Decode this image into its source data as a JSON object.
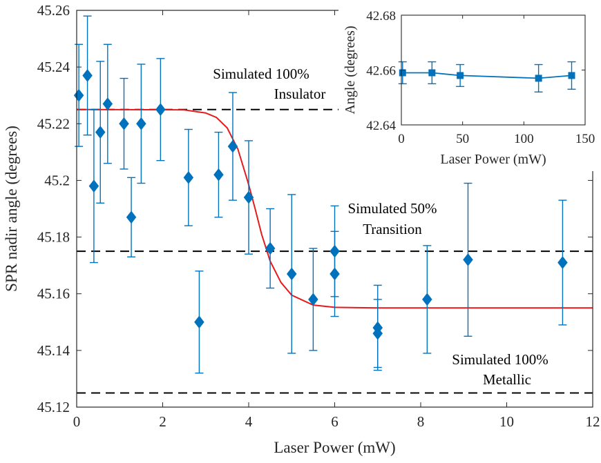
{
  "chart_data": [
    {
      "type": "scatter",
      "xlabel": "Laser Power (mW)",
      "ylabel": "SPR nadir angle (degrees)",
      "xlim": [
        0,
        12
      ],
      "ylim": [
        45.12,
        45.26
      ],
      "x_ticks": [
        0,
        2,
        4,
        6,
        8,
        10,
        12
      ],
      "y_ticks": [
        45.12,
        45.14,
        45.16,
        45.18,
        45.2,
        45.22,
        45.24,
        45.26
      ],
      "x_tick_labels": [
        "0",
        "2",
        "4",
        "6",
        "8",
        "10",
        "12"
      ],
      "y_tick_labels": [
        "45.12",
        "45.14",
        "45.16",
        "45.18",
        "45.2",
        "45.22",
        "45.24",
        "45.26"
      ],
      "grid": false,
      "colors": {
        "markers": "#0072BD",
        "fit": "#e41a1c",
        "reference_lines": "#000000"
      },
      "series": [
        {
          "style": "diamond markers with error bars",
          "points": [
            {
              "x": 0.05,
              "y": 45.23,
              "err": 0.018
            },
            {
              "x": 0.25,
              "y": 45.237,
              "err": 0.021
            },
            {
              "x": 0.4,
              "y": 45.198,
              "err": 0.027
            },
            {
              "x": 0.55,
              "y": 45.217,
              "err": 0.025
            },
            {
              "x": 0.72,
              "y": 45.227,
              "err": 0.021
            },
            {
              "x": 1.1,
              "y": 45.22,
              "err": 0.016
            },
            {
              "x": 1.27,
              "y": 45.187,
              "err": 0.014
            },
            {
              "x": 1.5,
              "y": 45.22,
              "err": 0.021
            },
            {
              "x": 1.95,
              "y": 45.225,
              "err": 0.018
            },
            {
              "x": 2.6,
              "y": 45.201,
              "err": 0.017
            },
            {
              "x": 2.85,
              "y": 45.15,
              "err": 0.018
            },
            {
              "x": 3.3,
              "y": 45.202,
              "err": 0.015
            },
            {
              "x": 3.63,
              "y": 45.212,
              "err": 0.019
            },
            {
              "x": 4.0,
              "y": 45.194,
              "err": 0.02
            },
            {
              "x": 4.5,
              "y": 45.176,
              "err": 0.014
            },
            {
              "x": 5.0,
              "y": 45.167,
              "err": 0.028
            },
            {
              "x": 5.5,
              "y": 45.158,
              "err": 0.018
            },
            {
              "x": 6.0,
              "y": 45.175,
              "err": 0.016
            },
            {
              "x": 6.0,
              "y": 45.167,
              "err": 0.015
            },
            {
              "x": 7.0,
              "y": 45.148,
              "err": 0.015
            },
            {
              "x": 7.0,
              "y": 45.146,
              "err": 0.012
            },
            {
              "x": 8.15,
              "y": 45.158,
              "err": 0.019
            },
            {
              "x": 9.1,
              "y": 45.172,
              "err": 0.027
            },
            {
              "x": 11.3,
              "y": 45.171,
              "err": 0.022
            }
          ]
        },
        {
          "style": "fitted sigmoid curve",
          "points": [
            {
              "x": 0,
              "y": 45.225
            },
            {
              "x": 2.5,
              "y": 45.2249
            },
            {
              "x": 3.0,
              "y": 45.2238
            },
            {
              "x": 3.25,
              "y": 45.2222
            },
            {
              "x": 3.5,
              "y": 45.2185
            },
            {
              "x": 3.75,
              "y": 45.211
            },
            {
              "x": 4.0,
              "y": 45.1985
            },
            {
              "x": 4.15,
              "y": 45.19
            },
            {
              "x": 4.3,
              "y": 45.181
            },
            {
              "x": 4.5,
              "y": 45.1715
            },
            {
              "x": 4.75,
              "y": 45.164
            },
            {
              "x": 5.0,
              "y": 45.1595
            },
            {
              "x": 5.5,
              "y": 45.156
            },
            {
              "x": 6.0,
              "y": 45.1552
            },
            {
              "x": 7.0,
              "y": 45.155
            },
            {
              "x": 12,
              "y": 45.155
            }
          ]
        }
      ],
      "reference_lines": [
        {
          "y": 45.225,
          "label_lines": [
            "Simulated 100%",
            "Insulator"
          ]
        },
        {
          "y": 45.175,
          "label_lines": [
            "Simulated 50%",
            "Transition"
          ]
        },
        {
          "y": 45.125,
          "label_lines": [
            "Simulated 100%",
            "Metallic"
          ]
        }
      ]
    },
    {
      "type": "line",
      "xlabel": "Laser Power (mW)",
      "ylabel": "Angle (degrees)",
      "xlim": [
        0,
        150
      ],
      "ylim": [
        42.64,
        42.68
      ],
      "x_ticks": [
        0,
        50,
        100,
        150
      ],
      "y_ticks": [
        42.64,
        42.66,
        42.68
      ],
      "x_tick_labels": [
        "0",
        "50",
        "100",
        "150"
      ],
      "y_tick_labels": [
        "42.64",
        "42.66",
        "42.68"
      ],
      "grid": false,
      "colors": {
        "series": "#0072BD"
      },
      "series": [
        {
          "style": "square markers, connecting line, error bars",
          "points": [
            {
              "x": 1,
              "y": 42.659,
              "err": 0.004
            },
            {
              "x": 25,
              "y": 42.659,
              "err": 0.004
            },
            {
              "x": 48,
              "y": 42.658,
              "err": 0.004
            },
            {
              "x": 112,
              "y": 42.657,
              "err": 0.005
            },
            {
              "x": 139,
              "y": 42.658,
              "err": 0.005
            }
          ]
        }
      ]
    }
  ]
}
